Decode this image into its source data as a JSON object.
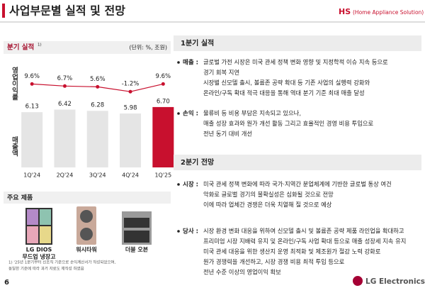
{
  "header": {
    "title": "사업부문별 실적 및 전망",
    "division": "HS",
    "division_full": "(Home Appliance Solution)"
  },
  "left": {
    "title": "분기 실적",
    "title_note": "1)",
    "unit": "(단위: %, 조원)",
    "products_title": "주요 제품",
    "products": [
      {
        "name_lines": [
          "LG DIOS",
          "무드업 냉장고"
        ]
      },
      {
        "name_lines": [
          "워시타워"
        ]
      },
      {
        "name_lines": [
          "더블 오븐"
        ]
      }
    ],
    "footnote": [
      "1) '25년 1분기부터 신조직 기준으로 손익계산서가 작성되었으며,",
      "동일한 기준에 따라 과거 자료도 재작성 하였음"
    ]
  },
  "chart_data": {
    "type": "combo",
    "categories": [
      "1Q'24",
      "2Q'24",
      "3Q'24",
      "4Q'24",
      "1Q'25"
    ],
    "series": [
      {
        "name": "영업이익률",
        "type": "line",
        "color": "#c8102e",
        "values": [
          9.6,
          6.7,
          5.6,
          -1.2,
          9.6
        ],
        "value_labels": [
          "9.6%",
          "6.7%",
          "5.6%",
          "-1.2%",
          "9.6%"
        ]
      },
      {
        "name": "매출액",
        "type": "bar",
        "colors": [
          "#e5e5e5",
          "#e5e5e5",
          "#e5e5e5",
          "#e5e5e5",
          "#c8102e"
        ],
        "values": [
          6.13,
          6.42,
          6.28,
          5.98,
          6.7
        ],
        "value_labels": [
          "6.13",
          "6.42",
          "6.28",
          "5.98",
          "6.70"
        ]
      }
    ]
  },
  "right": {
    "sections": [
      {
        "title": "1분기 실적",
        "items": [
          {
            "label": "매출 :",
            "lines": [
              "글로벌 가전 시장은 미국 관세 정책 변화 영향 및 지정학적 이슈 지속 등으로",
              "경기 회복 지연",
              "시장별 신모델 출시, 볼륨존 공략 확대 등 기존 사업의 실행력 강화와",
              "온라인/구독 확대 적극 대응을 통해 역대 분기 기준 최대 매출 달성"
            ]
          },
          {
            "label": "손익 :",
            "lines": [
              "물류비 등 비용 부담은 지속되고 있으나,",
              "매출 성장 효과와 원가 개선 활동 그리고 효율적인 경영 비용 투입으로",
              "전년 동기 대비 개선"
            ]
          }
        ]
      },
      {
        "title": "2분기 전망",
        "items": [
          {
            "label": "시장 :",
            "lines": [
              "미국 관세 정책 변화에 따라 국가·지역간 분업체계에 기반한 글로벌 통상 여건",
              "악화로 글로벌 경기의 불확실성은 심화될 것으로 전망",
              "이에 따라 업체간 경쟁은 더욱 치열해 질 것으로 예상"
            ]
          },
          {
            "label": "당사 :",
            "lines": [
              "시장 환경 변화 대응을 위하여 신모델 출시 및 볼륨존 공략 제품 라인업을 확대하고",
              "프리미엄 시장 지배력 유지 및 온라인/구독 사업 확대 등으로 매출 성장세 지속 유지",
              "미국 관세 대응을 위한 생산지 운영 최적화 및 제조원가 절감 노력 강화로",
              "원가 경쟁력을 개선하고, 시장 경쟁 비용 최적 투입 등으로",
              "전년 수준 이상의 영업이익 확보"
            ]
          }
        ]
      }
    ]
  },
  "page_number": "6",
  "logo": "LG Electronics"
}
